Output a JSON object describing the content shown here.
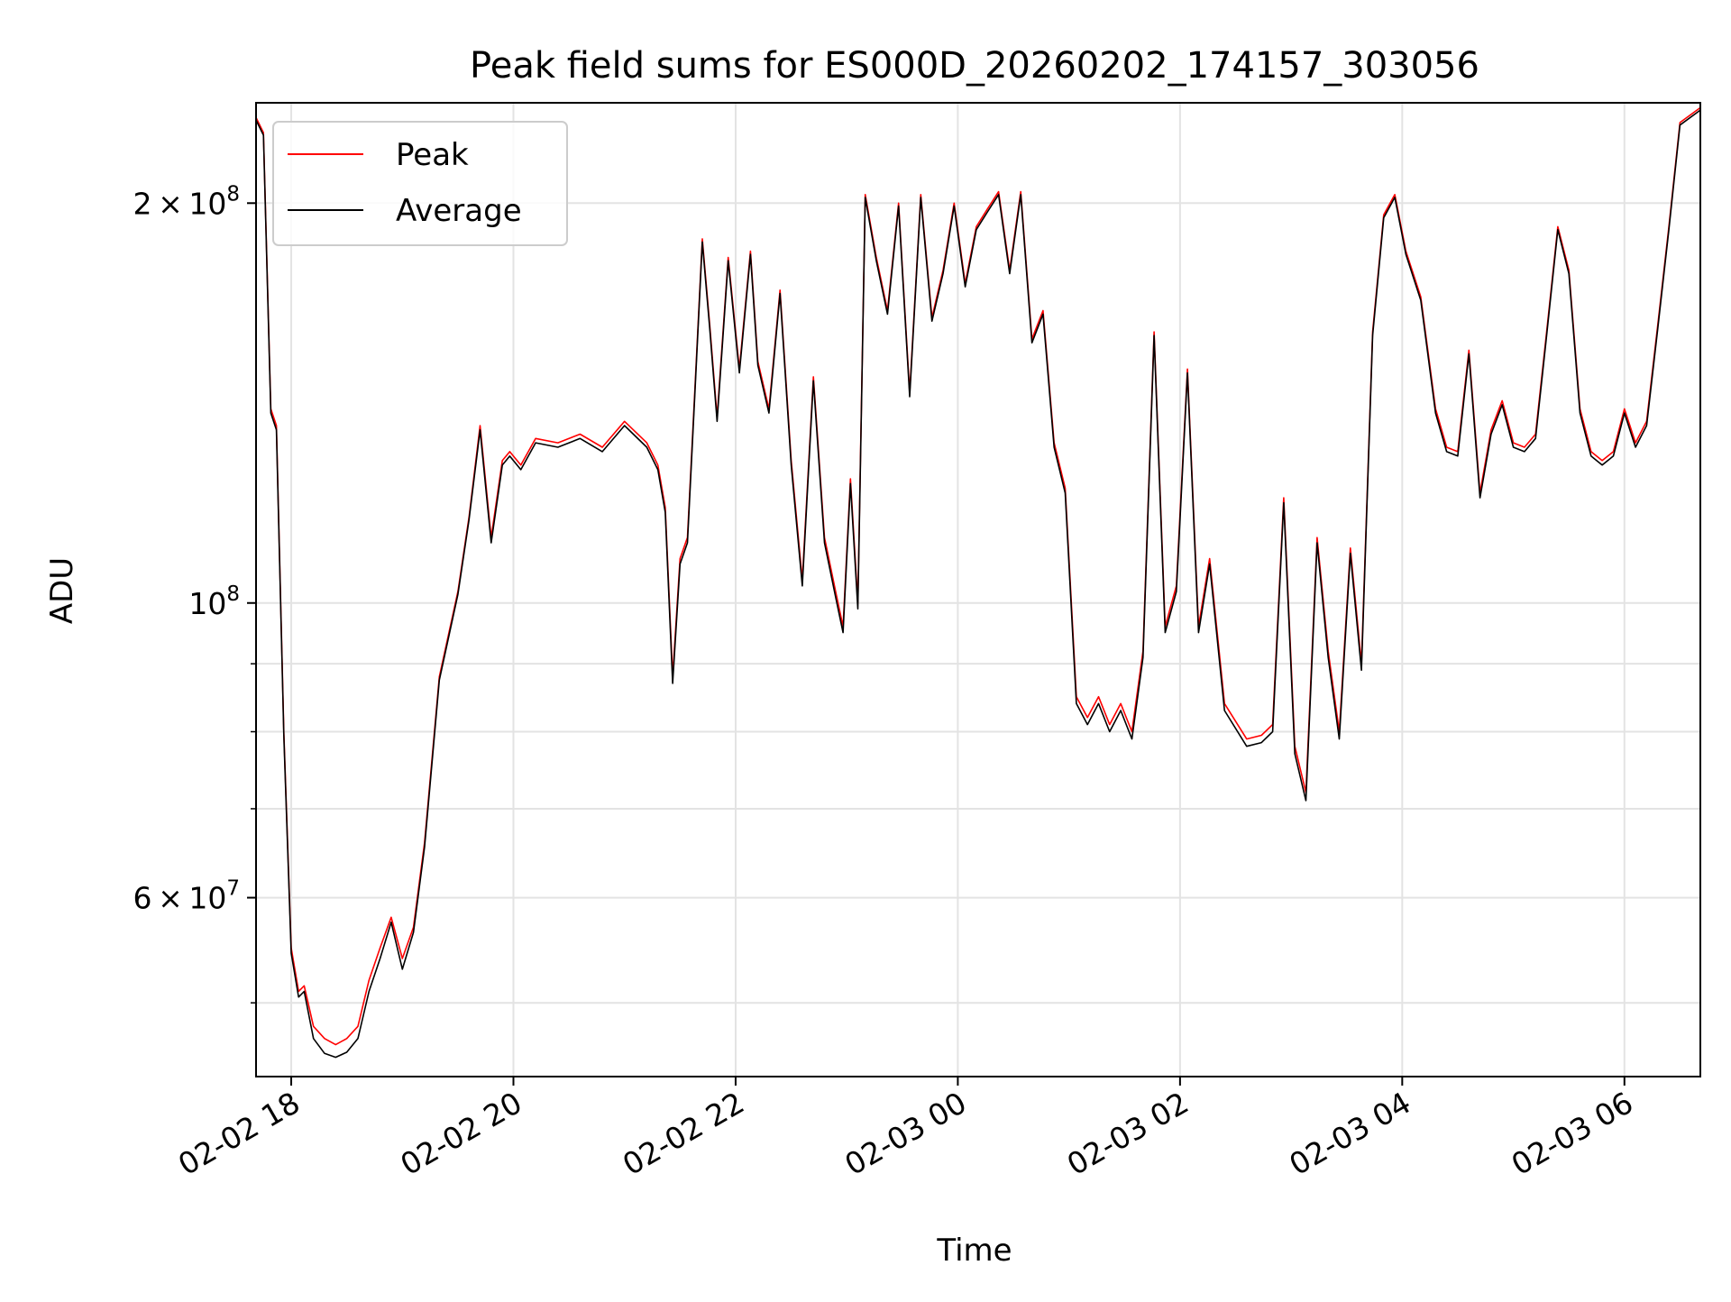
{
  "chart_data": {
    "type": "line",
    "title": "Peak field sums for ES000D_20260202_174157_303056",
    "xlabel": "Time",
    "ylabel": "ADU",
    "x_axis": "datetime",
    "xlim": [
      "2026-02-02 17:41",
      "2026-02-03 06:41"
    ],
    "y_scale": "log",
    "ylim": [
      44000000,
      238000000
    ],
    "grid": true,
    "legend_position": "upper-left",
    "x_ticks": [
      {
        "t": "2026-02-02 18:00",
        "label": "02-02 18"
      },
      {
        "t": "2026-02-02 20:00",
        "label": "02-02 20"
      },
      {
        "t": "2026-02-02 22:00",
        "label": "02-02 22"
      },
      {
        "t": "2026-02-03 00:00",
        "label": "02-03 00"
      },
      {
        "t": "2026-02-03 02:00",
        "label": "02-03 02"
      },
      {
        "t": "2026-02-03 04:00",
        "label": "02-03 04"
      },
      {
        "t": "2026-02-03 06:00",
        "label": "02-03 06"
      }
    ],
    "y_ticks_major": [
      {
        "value": 60000000,
        "mantissa": "6 × 10",
        "exponent": "7"
      },
      {
        "value": 100000000,
        "mantissa": "10",
        "exponent": "8"
      },
      {
        "value": 200000000,
        "mantissa": "2 × 10",
        "exponent": "8"
      }
    ],
    "y_ticks_minor": [
      50000000,
      70000000,
      80000000,
      90000000
    ],
    "colors": {
      "peak": "#ff0000",
      "average": "#000000"
    },
    "series": [
      {
        "name": "Peak",
        "color": "#ff0000",
        "x": [
          "2026-02-02 17:41",
          "2026-02-02 17:45",
          "2026-02-02 17:49",
          "2026-02-02 17:52",
          "2026-02-02 17:56",
          "2026-02-02 18:00",
          "2026-02-02 18:04",
          "2026-02-02 18:07",
          "2026-02-02 18:12",
          "2026-02-02 18:18",
          "2026-02-02 18:24",
          "2026-02-02 18:30",
          "2026-02-02 18:36",
          "2026-02-02 18:42",
          "2026-02-02 18:48",
          "2026-02-02 18:54",
          "2026-02-02 19:00",
          "2026-02-02 19:06",
          "2026-02-02 19:12",
          "2026-02-02 19:20",
          "2026-02-02 19:30",
          "2026-02-02 19:36",
          "2026-02-02 19:42",
          "2026-02-02 19:48",
          "2026-02-02 19:54",
          "2026-02-02 19:58",
          "2026-02-02 20:04",
          "2026-02-02 20:12",
          "2026-02-02 20:24",
          "2026-02-02 20:36",
          "2026-02-02 20:48",
          "2026-02-02 21:00",
          "2026-02-02 21:12",
          "2026-02-02 21:18",
          "2026-02-02 21:22",
          "2026-02-02 21:26",
          "2026-02-02 21:30",
          "2026-02-02 21:34",
          "2026-02-02 21:38",
          "2026-02-02 21:42",
          "2026-02-02 21:46",
          "2026-02-02 21:50",
          "2026-02-02 21:56",
          "2026-02-02 22:02",
          "2026-02-02 22:08",
          "2026-02-02 22:12",
          "2026-02-02 22:18",
          "2026-02-02 22:24",
          "2026-02-02 22:30",
          "2026-02-02 22:36",
          "2026-02-02 22:42",
          "2026-02-02 22:48",
          "2026-02-02 22:54",
          "2026-02-02 22:58",
          "2026-02-02 23:02",
          "2026-02-02 23:06",
          "2026-02-02 23:10",
          "2026-02-02 23:16",
          "2026-02-02 23:22",
          "2026-02-02 23:28",
          "2026-02-02 23:34",
          "2026-02-02 23:40",
          "2026-02-02 23:46",
          "2026-02-02 23:52",
          "2026-02-02 23:58",
          "2026-02-03 00:04",
          "2026-02-03 00:10",
          "2026-02-03 00:16",
          "2026-02-03 00:22",
          "2026-02-03 00:28",
          "2026-02-03 00:34",
          "2026-02-03 00:40",
          "2026-02-03 00:46",
          "2026-02-03 00:52",
          "2026-02-03 00:58",
          "2026-02-03 01:04",
          "2026-02-03 01:10",
          "2026-02-03 01:16",
          "2026-02-03 01:22",
          "2026-02-03 01:28",
          "2026-02-03 01:34",
          "2026-02-03 01:40",
          "2026-02-03 01:46",
          "2026-02-03 01:52",
          "2026-02-03 01:58",
          "2026-02-03 02:04",
          "2026-02-03 02:10",
          "2026-02-03 02:16",
          "2026-02-03 02:24",
          "2026-02-03 02:36",
          "2026-02-03 02:44",
          "2026-02-03 02:50",
          "2026-02-03 02:56",
          "2026-02-03 03:02",
          "2026-02-03 03:08",
          "2026-02-03 03:14",
          "2026-02-03 03:20",
          "2026-02-03 03:26",
          "2026-02-03 03:32",
          "2026-02-03 03:38",
          "2026-02-03 03:44",
          "2026-02-03 03:50",
          "2026-02-03 03:56",
          "2026-02-03 04:02",
          "2026-02-03 04:10",
          "2026-02-03 04:18",
          "2026-02-03 04:24",
          "2026-02-03 04:30",
          "2026-02-03 04:36",
          "2026-02-03 04:42",
          "2026-02-03 04:48",
          "2026-02-03 04:54",
          "2026-02-03 05:00",
          "2026-02-03 05:06",
          "2026-02-03 05:12",
          "2026-02-03 05:18",
          "2026-02-03 05:24",
          "2026-02-03 05:30",
          "2026-02-03 05:36",
          "2026-02-03 05:42",
          "2026-02-03 05:48",
          "2026-02-03 05:54",
          "2026-02-03 06:00",
          "2026-02-03 06:06",
          "2026-02-03 06:12",
          "2026-02-03 06:18",
          "2026-02-03 06:24",
          "2026-02-03 06:30",
          "2026-02-03 06:41"
        ],
        "y": [
          232000000,
          226000000,
          140000000,
          136000000,
          80000000,
          55000000,
          51000000,
          51500000,
          48000000,
          47000000,
          46500000,
          47000000,
          48000000,
          52000000,
          55000000,
          58000000,
          54000000,
          57000000,
          66000000,
          88000000,
          102000000,
          116000000,
          136000000,
          112000000,
          128000000,
          130000000,
          127000000,
          133000000,
          132000000,
          134000000,
          131000000,
          137000000,
          132000000,
          127000000,
          118000000,
          88000000,
          108000000,
          112000000,
          145000000,
          188000000,
          162000000,
          138000000,
          182000000,
          150000000,
          184000000,
          152000000,
          140000000,
          172000000,
          128000000,
          104000000,
          148000000,
          112000000,
          102000000,
          96000000,
          124000000,
          100000000,
          203000000,
          182000000,
          166000000,
          200000000,
          144000000,
          203000000,
          164000000,
          178000000,
          200000000,
          174000000,
          192000000,
          198000000,
          204000000,
          178000000,
          204000000,
          158000000,
          166000000,
          132000000,
          122000000,
          85000000,
          82000000,
          85000000,
          81000000,
          84000000,
          80000000,
          92000000,
          160000000,
          96000000,
          103000000,
          150000000,
          96000000,
          108000000,
          84000000,
          79000000,
          79500000,
          81000000,
          120000000,
          78000000,
          72000000,
          112000000,
          92000000,
          80000000,
          110000000,
          90000000,
          160000000,
          196000000,
          203000000,
          184000000,
          170000000,
          140000000,
          131000000,
          130000000,
          155000000,
          121000000,
          135000000,
          142000000,
          132000000,
          131000000,
          134000000,
          160000000,
          192000000,
          178000000,
          140000000,
          130000000,
          128000000,
          130000000,
          140000000,
          132000000,
          137000000,
          162000000,
          192000000,
          230000000,
          236000000
        ]
      },
      {
        "name": "Average",
        "color": "#000000",
        "x": [
          "2026-02-02 17:41",
          "2026-02-02 17:45",
          "2026-02-02 17:49",
          "2026-02-02 17:52",
          "2026-02-02 17:56",
          "2026-02-02 18:00",
          "2026-02-02 18:04",
          "2026-02-02 18:07",
          "2026-02-02 18:12",
          "2026-02-02 18:18",
          "2026-02-02 18:24",
          "2026-02-02 18:30",
          "2026-02-02 18:36",
          "2026-02-02 18:42",
          "2026-02-02 18:48",
          "2026-02-02 18:54",
          "2026-02-02 19:00",
          "2026-02-02 19:06",
          "2026-02-02 19:12",
          "2026-02-02 19:20",
          "2026-02-02 19:30",
          "2026-02-02 19:36",
          "2026-02-02 19:42",
          "2026-02-02 19:48",
          "2026-02-02 19:54",
          "2026-02-02 19:58",
          "2026-02-02 20:04",
          "2026-02-02 20:12",
          "2026-02-02 20:24",
          "2026-02-02 20:36",
          "2026-02-02 20:48",
          "2026-02-02 21:00",
          "2026-02-02 21:12",
          "2026-02-02 21:18",
          "2026-02-02 21:22",
          "2026-02-02 21:26",
          "2026-02-02 21:30",
          "2026-02-02 21:34",
          "2026-02-02 21:38",
          "2026-02-02 21:42",
          "2026-02-02 21:46",
          "2026-02-02 21:50",
          "2026-02-02 21:56",
          "2026-02-02 22:02",
          "2026-02-02 22:08",
          "2026-02-02 22:12",
          "2026-02-02 22:18",
          "2026-02-02 22:24",
          "2026-02-02 22:30",
          "2026-02-02 22:36",
          "2026-02-02 22:42",
          "2026-02-02 22:48",
          "2026-02-02 22:54",
          "2026-02-02 22:58",
          "2026-02-02 23:02",
          "2026-02-02 23:06",
          "2026-02-02 23:10",
          "2026-02-02 23:16",
          "2026-02-02 23:22",
          "2026-02-02 23:28",
          "2026-02-02 23:34",
          "2026-02-02 23:40",
          "2026-02-02 23:46",
          "2026-02-02 23:52",
          "2026-02-02 23:58",
          "2026-02-03 00:04",
          "2026-02-03 00:10",
          "2026-02-03 00:16",
          "2026-02-03 00:22",
          "2026-02-03 00:28",
          "2026-02-03 00:34",
          "2026-02-03 00:40",
          "2026-02-03 00:46",
          "2026-02-03 00:52",
          "2026-02-03 00:58",
          "2026-02-03 01:04",
          "2026-02-03 01:10",
          "2026-02-03 01:16",
          "2026-02-03 01:22",
          "2026-02-03 01:28",
          "2026-02-03 01:34",
          "2026-02-03 01:40",
          "2026-02-03 01:46",
          "2026-02-03 01:52",
          "2026-02-03 01:58",
          "2026-02-03 02:04",
          "2026-02-03 02:10",
          "2026-02-03 02:16",
          "2026-02-03 02:24",
          "2026-02-03 02:36",
          "2026-02-03 02:44",
          "2026-02-03 02:50",
          "2026-02-03 02:56",
          "2026-02-03 03:02",
          "2026-02-03 03:08",
          "2026-02-03 03:14",
          "2026-02-03 03:20",
          "2026-02-03 03:26",
          "2026-02-03 03:32",
          "2026-02-03 03:38",
          "2026-02-03 03:44",
          "2026-02-03 03:50",
          "2026-02-03 03:56",
          "2026-02-03 04:02",
          "2026-02-03 04:10",
          "2026-02-03 04:18",
          "2026-02-03 04:24",
          "2026-02-03 04:30",
          "2026-02-03 04:36",
          "2026-02-03 04:42",
          "2026-02-03 04:48",
          "2026-02-03 04:54",
          "2026-02-03 05:00",
          "2026-02-03 05:06",
          "2026-02-03 05:12",
          "2026-02-03 05:18",
          "2026-02-03 05:24",
          "2026-02-03 05:30",
          "2026-02-03 05:36",
          "2026-02-03 05:42",
          "2026-02-03 05:48",
          "2026-02-03 05:54",
          "2026-02-03 06:00",
          "2026-02-03 06:06",
          "2026-02-03 06:12",
          "2026-02-03 06:18",
          "2026-02-03 06:24",
          "2026-02-03 06:30",
          "2026-02-03 06:41"
        ],
        "y": [
          231000000,
          225000000,
          139000000,
          135000000,
          79500000,
          54500000,
          50500000,
          51000000,
          47000000,
          45800000,
          45500000,
          45900000,
          47000000,
          51000000,
          54000000,
          57500000,
          53000000,
          56500000,
          65500000,
          87500000,
          101500000,
          115500000,
          135000000,
          111000000,
          127000000,
          129000000,
          126000000,
          132000000,
          131000000,
          133000000,
          130000000,
          136000000,
          131000000,
          126000000,
          117000000,
          87000000,
          107000000,
          111000000,
          144000000,
          187000000,
          161000000,
          137000000,
          181000000,
          149000000,
          183000000,
          151000000,
          139000000,
          171000000,
          127000000,
          103000000,
          147000000,
          111000000,
          101000000,
          95000000,
          123000000,
          99000000,
          202000000,
          181000000,
          165000000,
          199000000,
          143000000,
          202000000,
          163000000,
          177000000,
          199000000,
          173000000,
          191000000,
          197000000,
          203000000,
          177000000,
          203000000,
          157000000,
          165000000,
          131000000,
          121000000,
          84000000,
          81000000,
          84000000,
          80000000,
          83000000,
          79000000,
          91000000,
          159000000,
          95000000,
          102000000,
          149000000,
          95000000,
          107000000,
          83000000,
          78000000,
          78500000,
          80000000,
          119000000,
          77000000,
          71000000,
          111000000,
          91000000,
          79000000,
          109000000,
          89000000,
          159000000,
          195000000,
          202000000,
          183000000,
          169000000,
          139000000,
          130000000,
          129000000,
          154000000,
          120000000,
          134000000,
          141000000,
          131000000,
          130000000,
          133000000,
          159000000,
          191000000,
          177000000,
          139000000,
          129000000,
          127000000,
          129000000,
          139000000,
          131000000,
          136000000,
          161000000,
          191000000,
          229000000,
          235000000
        ]
      }
    ]
  }
}
